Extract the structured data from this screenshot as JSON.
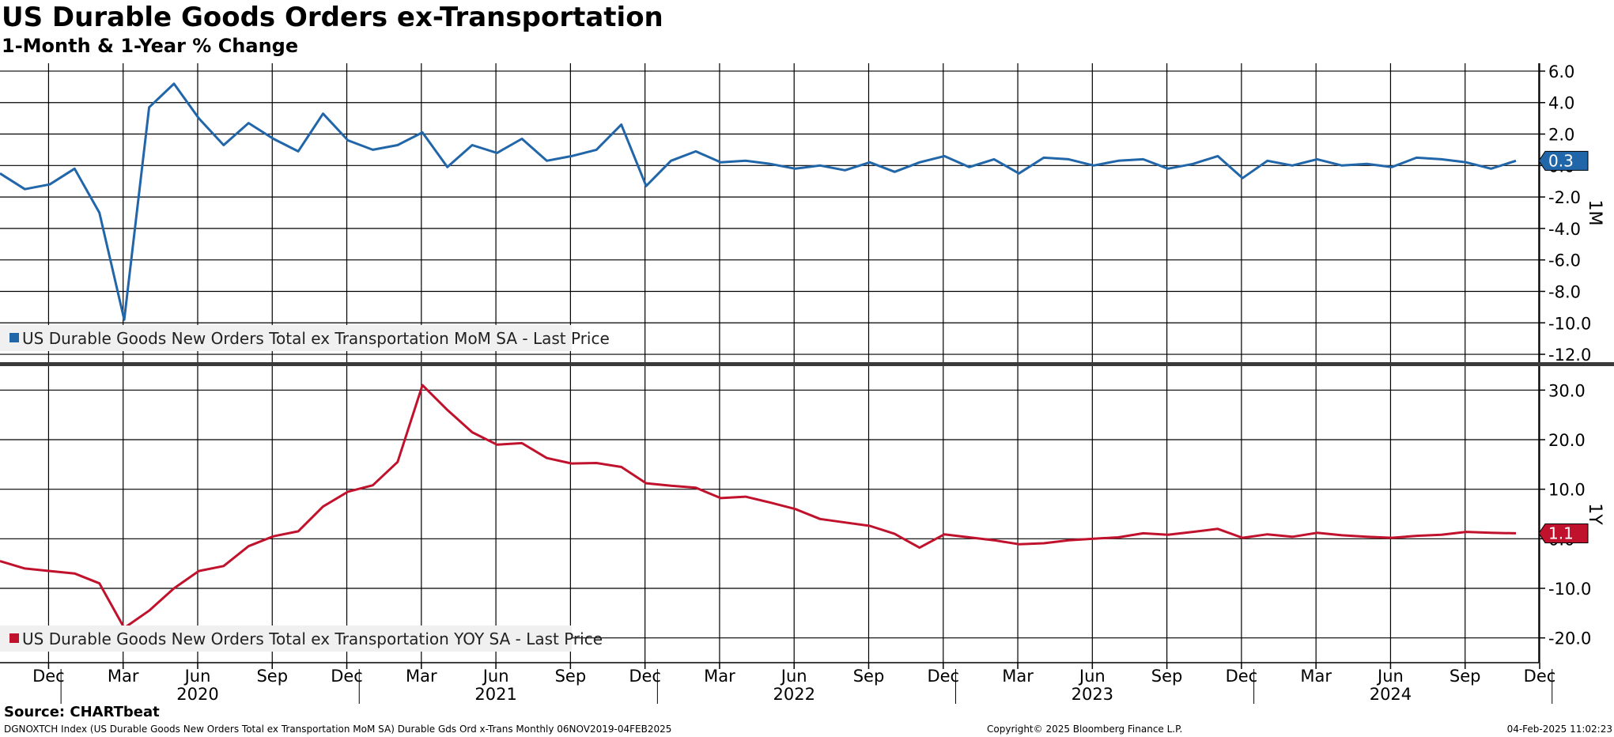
{
  "header": {
    "title": "US Durable Goods Orders ex-Transportation",
    "subtitle": "1-Month & 1-Year % Change"
  },
  "footer": {
    "source": "Source: CHARTbeat",
    "ticker_info": "DGNOXTCH Index (US Durable Goods New Orders Total ex Transportation MoM SA) Durable Gds Ord x-Trans  Monthly 06NOV2019-04FEB2025",
    "copyright": "Copyright© 2025 Bloomberg Finance L.P.",
    "timestamp": "04-Feb-2025 11:02:23"
  },
  "colors": {
    "mom": "#2166a8",
    "yoy": "#c0122c"
  },
  "chart_data": [
    {
      "type": "line",
      "panel": "top",
      "axis_label": "1M",
      "legend": "US Durable Goods New Orders Total ex Transportation MoM SA - Last Price",
      "last_value": "0.3",
      "ylim": [
        -12.5,
        6.5
      ],
      "yticks": [
        "6.0",
        "4.0",
        "2.0",
        "0.0",
        "-2.0",
        "-4.0",
        "-6.0",
        "-8.0",
        "-10.0",
        "-12.0"
      ],
      "ytick_values": [
        6,
        4,
        2,
        0,
        -2,
        -4,
        -6,
        -8,
        -10,
        -12
      ],
      "x_start": "2019-11",
      "values": [
        -0.5,
        -1.5,
        -1.2,
        -0.2,
        -3.0,
        -9.8,
        3.7,
        5.2,
        3.0,
        1.3,
        2.7,
        1.7,
        0.9,
        3.3,
        1.6,
        1.0,
        1.3,
        2.1,
        -0.1,
        1.3,
        0.8,
        1.7,
        0.3,
        0.6,
        1.0,
        2.6,
        -1.3,
        0.3,
        0.9,
        0.2,
        0.3,
        0.1,
        -0.2,
        0.0,
        -0.3,
        0.2,
        -0.4,
        0.2,
        0.6,
        -0.1,
        0.4,
        -0.5,
        0.5,
        0.4,
        0.0,
        0.3,
        0.4,
        -0.2,
        0.1,
        0.6,
        -0.8,
        0.3,
        0.0,
        0.4,
        0.0,
        0.1,
        -0.1,
        0.5,
        0.4,
        0.2,
        -0.2,
        0.3
      ]
    },
    {
      "type": "line",
      "panel": "bottom",
      "axis_label": "1Y",
      "legend": "US Durable Goods New Orders Total ex Transportation YOY SA - Last Price",
      "last_value": "1.1",
      "ylim": [
        -25,
        35
      ],
      "yticks": [
        "30.0",
        "20.0",
        "10.0",
        "0.0",
        "-10.0",
        "-20.0"
      ],
      "ytick_values": [
        30,
        20,
        10,
        0,
        -10,
        -20
      ],
      "x_start": "2019-11",
      "values": [
        -4.5,
        -6.0,
        -6.5,
        -7.0,
        -9.0,
        -18.0,
        -14.5,
        -10.0,
        -6.5,
        -5.5,
        -1.5,
        0.5,
        1.5,
        6.5,
        9.5,
        10.8,
        15.5,
        31.0,
        26.0,
        21.5,
        19.0,
        19.3,
        16.3,
        15.2,
        15.3,
        14.5,
        11.2,
        10.7,
        10.3,
        8.2,
        8.5,
        7.3,
        6.0,
        4.0,
        3.3,
        2.6,
        1.0,
        -1.8,
        0.9,
        0.3,
        -0.3,
        -1.1,
        -0.9,
        -0.3,
        0.0,
        0.3,
        1.1,
        0.8,
        1.4,
        2.0,
        0.2,
        0.9,
        0.4,
        1.2,
        0.7,
        0.4,
        0.2,
        0.6,
        0.8,
        1.4,
        1.2,
        1.1
      ]
    }
  ],
  "x_axis": {
    "month_labels": [
      {
        "label": "Dec",
        "index": 1
      },
      {
        "label": "Mar",
        "index": 4
      },
      {
        "label": "Jun",
        "index": 7
      },
      {
        "label": "Sep",
        "index": 10
      },
      {
        "label": "Dec",
        "index": 13
      },
      {
        "label": "Mar",
        "index": 16
      },
      {
        "label": "Jun",
        "index": 19
      },
      {
        "label": "Sep",
        "index": 22
      },
      {
        "label": "Dec",
        "index": 25
      },
      {
        "label": "Mar",
        "index": 28
      },
      {
        "label": "Jun",
        "index": 31
      },
      {
        "label": "Sep",
        "index": 34
      },
      {
        "label": "Dec",
        "index": 37
      },
      {
        "label": "Mar",
        "index": 40
      },
      {
        "label": "Jun",
        "index": 43
      },
      {
        "label": "Sep",
        "index": 46
      },
      {
        "label": "Dec",
        "index": 49
      },
      {
        "label": "Mar",
        "index": 52
      },
      {
        "label": "Jun",
        "index": 55
      },
      {
        "label": "Sep",
        "index": 58
      },
      {
        "label": "Dec",
        "index": 61
      }
    ],
    "year_labels": [
      {
        "label": "2020",
        "index": 7
      },
      {
        "label": "2021",
        "index": 19
      },
      {
        "label": "2022",
        "index": 31
      },
      {
        "label": "2023",
        "index": 43
      },
      {
        "label": "2024",
        "index": 55
      }
    ],
    "year_separators": [
      1.5,
      13.5,
      25.5,
      37.5,
      49.5,
      61.5
    ]
  }
}
